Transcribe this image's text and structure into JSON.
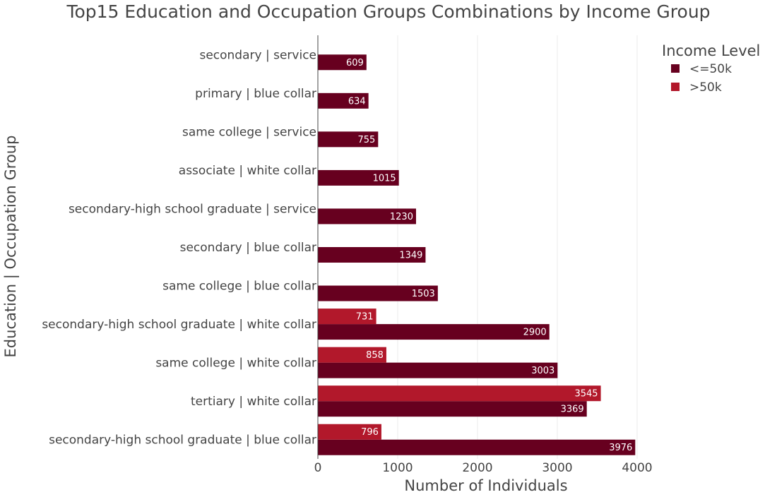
{
  "chart_data": {
    "type": "bar",
    "orientation": "horizontal",
    "barmode": "group",
    "title": "Top15 Education and Occupation Groups Combinations by Income Group",
    "xlabel": "Number of Individuals",
    "ylabel": "Education | Occupation Group",
    "xlim": [
      0,
      4000
    ],
    "xticks": [
      0,
      1000,
      2000,
      3000,
      4000
    ],
    "xtick_labels": [
      "0",
      "1000",
      "2000",
      "3000",
      "4000"
    ],
    "grid": "vertical gridlines on",
    "categories": [
      "secondary | service",
      "primary | blue collar",
      "same college | service",
      "associate | white collar",
      "secondary-high school graduate | service",
      "secondary | blue collar",
      "same college | blue collar",
      "secondary-high school graduate | white collar",
      "same college | white collar",
      "tertiary | white collar",
      "secondary-high school graduate | blue collar"
    ],
    "legend": {
      "title": "Income Level",
      "placement": "top-right"
    },
    "series": [
      {
        "name": "<=50k",
        "color": "#67001f",
        "values": [
          609,
          634,
          755,
          1015,
          1230,
          1349,
          1503,
          2900,
          3003,
          3369,
          3976
        ]
      },
      {
        "name": ">50k",
        "color": "#b2182b",
        "values": [
          null,
          null,
          null,
          null,
          null,
          null,
          null,
          731,
          858,
          3545,
          796
        ]
      }
    ]
  }
}
